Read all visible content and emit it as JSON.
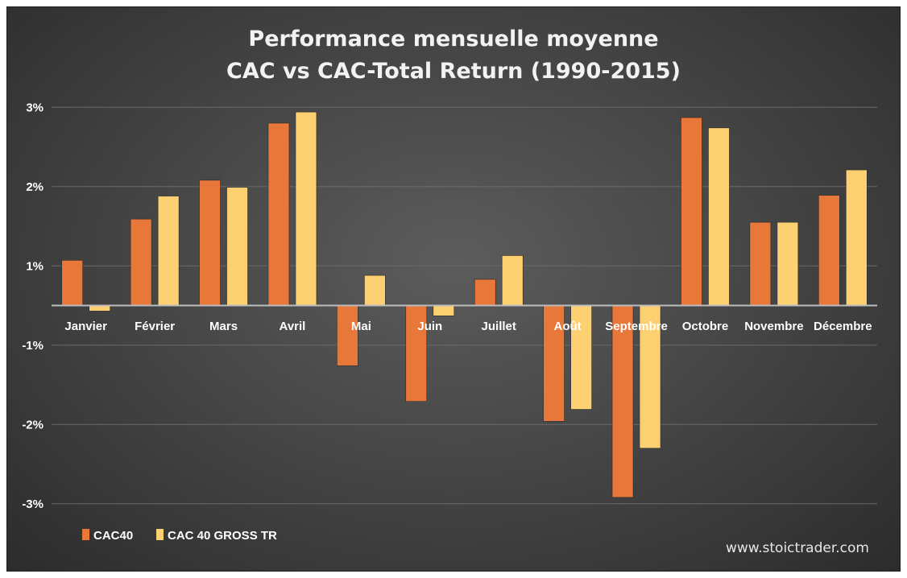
{
  "chart_data": {
    "type": "bar",
    "title": [
      "Performance mensuelle moyenne",
      "CAC vs CAC-Total Return (1990-2015)"
    ],
    "categories": [
      "Janvier",
      "Février",
      "Mars",
      "Avril",
      "Mai",
      "Juin",
      "Juillet",
      "Août",
      "Septembre",
      "Octobre",
      "Novembre",
      "Décembre"
    ],
    "series": [
      {
        "name": "CAC40",
        "color": "#e8773a",
        "values": [
          0.57,
          1.09,
          1.58,
          2.3,
          -0.76,
          -1.21,
          0.33,
          -1.46,
          -2.42,
          2.37,
          1.05,
          1.39
        ]
      },
      {
        "name": "CAC 40 GROSS TR",
        "color": "#fdd071",
        "values": [
          -0.07,
          1.38,
          1.49,
          2.44,
          0.38,
          -0.13,
          0.63,
          -1.31,
          -1.8,
          2.24,
          1.05,
          1.71
        ]
      }
    ],
    "y_ticks": [
      {
        "value": 2.5,
        "label": "3%"
      },
      {
        "value": 1.5,
        "label": "2%"
      },
      {
        "value": 0.5,
        "label": "1%"
      },
      {
        "value": -0.5,
        "label": "-1%"
      },
      {
        "value": -1.5,
        "label": "-2%"
      },
      {
        "value": -2.5,
        "label": "-3%"
      }
    ],
    "ylim": [
      -2.6,
      2.6
    ],
    "grid": true,
    "legend_position": "bottom-left",
    "watermark": "www.stoictrader.com"
  }
}
